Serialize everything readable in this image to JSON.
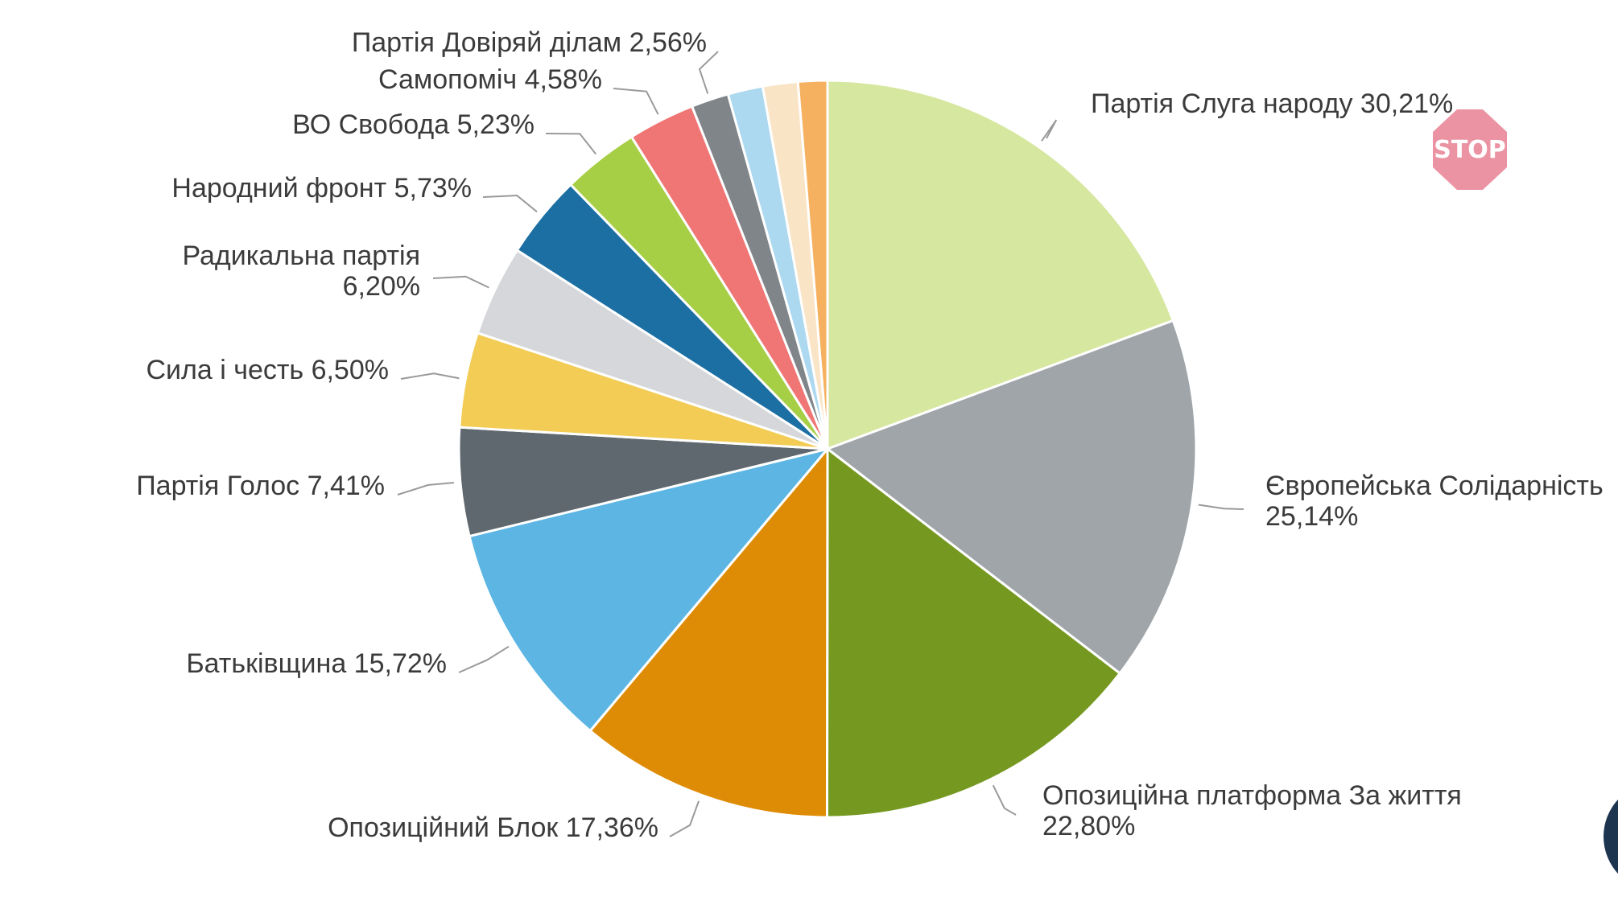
{
  "chart_data": {
    "type": "pie",
    "title": "",
    "slices": [
      {
        "label": "Партія Слуга народу",
        "value_text": "30,21%",
        "value": 30.21,
        "color": "#d6e7a0"
      },
      {
        "label": "Європейська Солідарність",
        "value_text": "25,14%",
        "value": 25.14,
        "color": "#9fa5a9"
      },
      {
        "label": "Опозиційна платформа За життя",
        "value_text": "22,80%",
        "value": 22.8,
        "color": "#759920"
      },
      {
        "label": "Опозиційний Блок",
        "value_text": "17,36%",
        "value": 17.36,
        "color": "#de8c05"
      },
      {
        "label": "Батьківщина",
        "value_text": "15,72%",
        "value": 15.72,
        "color": "#5cb5e3"
      },
      {
        "label": "Партія Голос",
        "value_text": "7,41%",
        "value": 7.41,
        "color": "#5f686e"
      },
      {
        "label": "Сила і честь",
        "value_text": "6,50%",
        "value": 6.5,
        "color": "#f2cc55"
      },
      {
        "label": "Радикальна партія",
        "value_text": "6,20%",
        "value": 6.2,
        "color": "#d5d7da"
      },
      {
        "label": "Народний фронт",
        "value_text": "5,73%",
        "value": 5.73,
        "color": "#1c6fa3"
      },
      {
        "label": "ВО Свобода",
        "value_text": "5,23%",
        "value": 5.23,
        "color": "#a6cf45"
      },
      {
        "label": "Самопоміч",
        "value_text": "4,58%",
        "value": 4.58,
        "color": "#f07575"
      },
      {
        "label": "Партія Довіряй ділам",
        "value_text": "2,56%",
        "value": 2.56,
        "color": "#7f8589"
      },
      {
        "label": "",
        "value_text": "",
        "value": 2.4,
        "color": "#acd8f0"
      },
      {
        "label": "",
        "value_text": "",
        "value": 2.4,
        "color": "#fae4c6"
      },
      {
        "label": "",
        "value_text": "",
        "value": 2.0,
        "color": "#f5b160"
      }
    ]
  },
  "watermark": {
    "text": "STOP",
    "color": "#e87f93"
  }
}
